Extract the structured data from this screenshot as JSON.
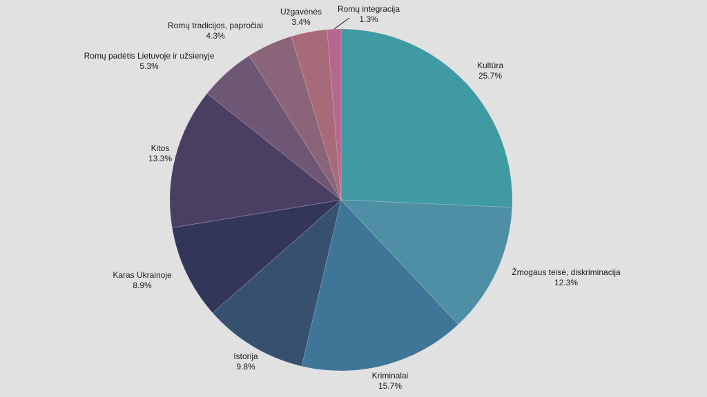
{
  "chart_data": {
    "type": "pie",
    "title": "",
    "slices": [
      {
        "label": "Kultūra",
        "value": 25.7,
        "value_label": "25.7%",
        "color": "#3f9aa3"
      },
      {
        "label": "Žmogaus teisė, diskriminacija",
        "value": 12.3,
        "value_label": "12.3%",
        "color": "#4f8fa6"
      },
      {
        "label": "Kriminalai",
        "value": 15.7,
        "value_label": "15.7%",
        "color": "#3f7596"
      },
      {
        "label": "Istorija",
        "value": 9.8,
        "value_label": "9.8%",
        "color": "#38506f"
      },
      {
        "label": "Karas Ukrainoje",
        "value": 8.9,
        "value_label": "8.9%",
        "color": "#333658"
      },
      {
        "label": "Kitos",
        "value": 13.3,
        "value_label": "13.3%",
        "color": "#4a3f63"
      },
      {
        "label": "Romų padėtis Lietuvoje ir užsienyje",
        "value": 5.3,
        "value_label": "5.3%",
        "color": "#6d5775"
      },
      {
        "label": "Romų tradicijos, papročiai",
        "value": 4.3,
        "value_label": "4.3%",
        "color": "#8a6478"
      },
      {
        "label": "Užgavėnės",
        "value": 3.4,
        "value_label": "3.4%",
        "color": "#a86a78"
      },
      {
        "label": "Romų integracija",
        "value": 1.3,
        "value_label": "1.3%",
        "color": "#b4678f"
      }
    ],
    "start_angle_deg": 0,
    "direction": "clockwise",
    "legend": "none",
    "labels": "outside"
  }
}
